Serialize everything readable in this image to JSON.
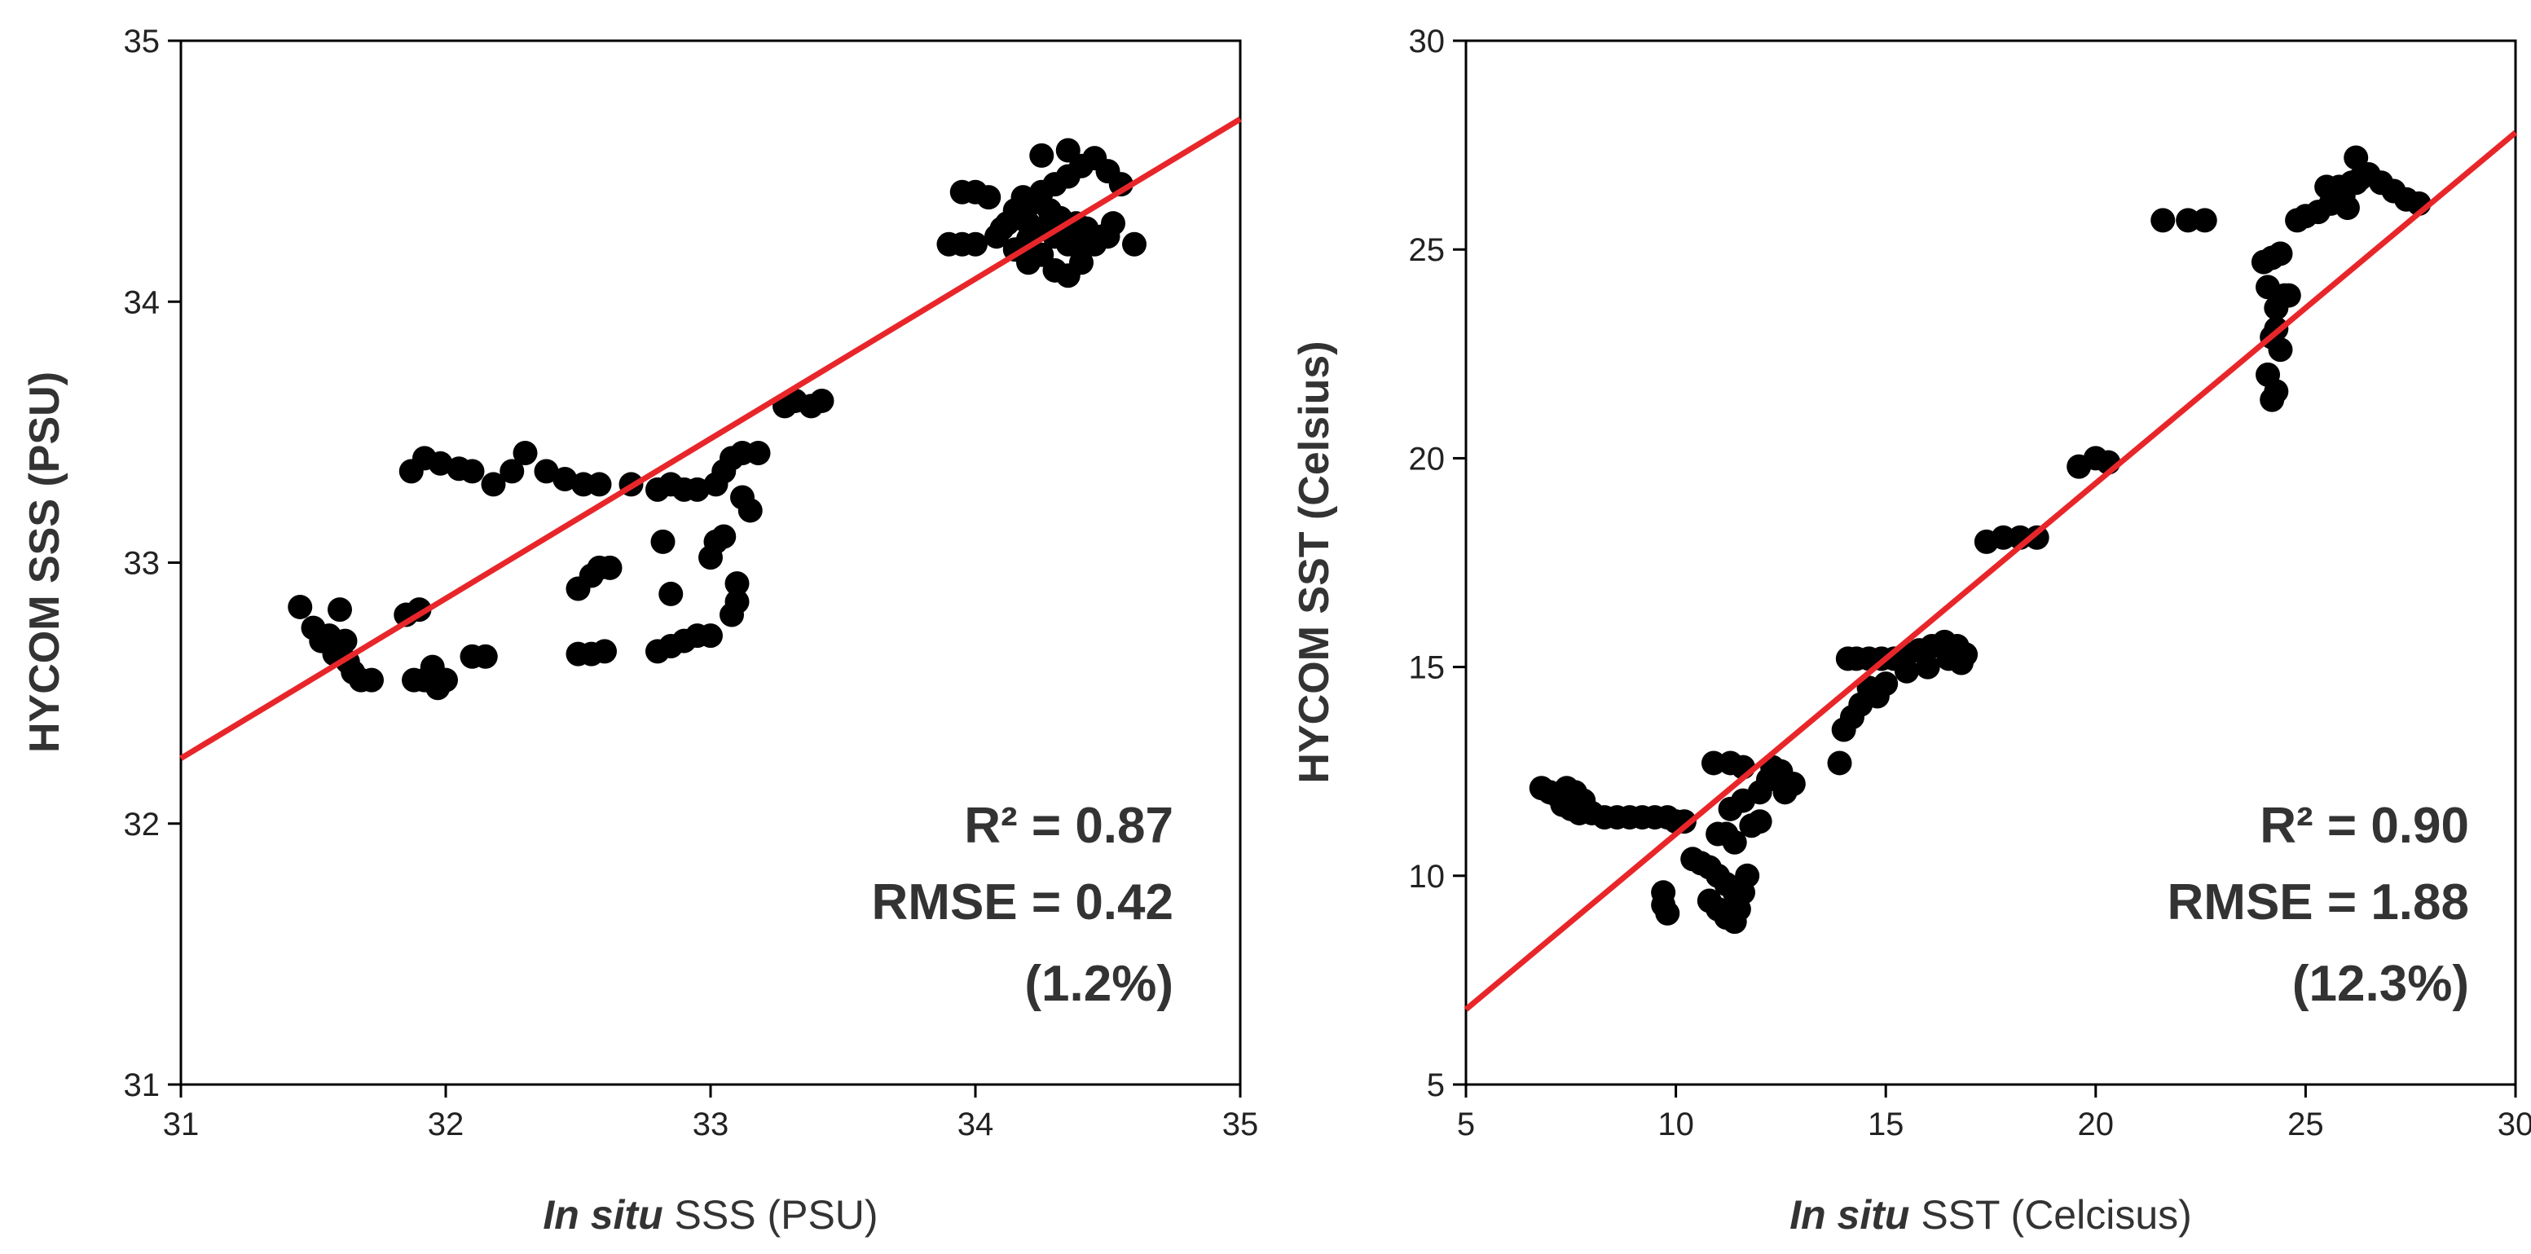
{
  "chart_data": [
    {
      "type": "scatter",
      "title": "",
      "xlabel_italic": "In situ",
      "xlabel_rest": " SSS (PSU)",
      "ylabel": "HYCOM SSS (PSU)",
      "xlim": [
        31,
        35
      ],
      "ylim": [
        31,
        35
      ],
      "xticks": [
        "31",
        "32",
        "33",
        "34",
        "35"
      ],
      "yticks": [
        "31",
        "32",
        "33",
        "34",
        "35"
      ],
      "grid": false,
      "fit_line": {
        "x": [
          31,
          35
        ],
        "y": [
          32.25,
          34.7
        ],
        "color": "#e8262a"
      },
      "stats": {
        "r2": "R² = 0.87",
        "rmse": "RMSE = 0.42",
        "pct": "(1.2%)"
      },
      "series": [
        {
          "name": "observations",
          "x": [
            31.45,
            31.5,
            31.53,
            31.56,
            31.58,
            31.6,
            31.62,
            31.63,
            31.65,
            31.68,
            31.72,
            31.85,
            31.9,
            31.95,
            31.88,
            31.92,
            31.97,
            32.0,
            32.1,
            32.15,
            31.87,
            31.92,
            31.98,
            32.05,
            32.1,
            32.18,
            32.25,
            32.3,
            32.38,
            32.45,
            32.52,
            32.58,
            32.7,
            32.8,
            32.85,
            32.9,
            32.95,
            32.5,
            32.55,
            32.58,
            32.62,
            32.5,
            32.55,
            32.6,
            32.8,
            32.85,
            32.9,
            32.95,
            33.0,
            32.85,
            32.82,
            33.0,
            33.02,
            33.05,
            33.08,
            33.1,
            33.02,
            33.05,
            33.08,
            33.12,
            33.18,
            33.1,
            33.12,
            33.15,
            33.28,
            33.32,
            33.38,
            33.42,
            33.9,
            33.95,
            34.0,
            34.05,
            33.95,
            34.0,
            34.08,
            34.12,
            34.15,
            34.2,
            34.25,
            34.3,
            34.35,
            34.4,
            34.45,
            34.5,
            34.55,
            34.6,
            34.15,
            34.2,
            34.25,
            34.3,
            34.35,
            34.4,
            34.48,
            34.52,
            34.1,
            34.15,
            34.2,
            34.25,
            34.3,
            34.35,
            34.4,
            34.45,
            34.18,
            34.22,
            34.28,
            34.32,
            34.38,
            34.42,
            34.2,
            34.3,
            34.36,
            34.25,
            34.35,
            34.5
          ],
          "y": [
            32.83,
            32.75,
            32.7,
            32.72,
            32.65,
            32.82,
            32.7,
            32.62,
            32.58,
            32.55,
            32.55,
            32.8,
            32.82,
            32.6,
            32.55,
            32.55,
            32.52,
            32.55,
            32.64,
            32.64,
            33.35,
            33.4,
            33.38,
            33.36,
            33.35,
            33.3,
            33.35,
            33.42,
            33.35,
            33.32,
            33.3,
            33.3,
            33.3,
            33.28,
            33.3,
            33.28,
            33.28,
            32.9,
            32.95,
            32.98,
            32.98,
            32.65,
            32.65,
            32.66,
            32.66,
            32.68,
            32.7,
            32.72,
            32.72,
            32.88,
            33.08,
            33.02,
            33.08,
            33.1,
            32.8,
            32.85,
            33.3,
            33.35,
            33.4,
            33.42,
            33.42,
            32.92,
            33.25,
            33.2,
            33.6,
            33.62,
            33.6,
            33.62,
            34.22,
            34.42,
            34.42,
            34.4,
            34.22,
            34.22,
            34.25,
            34.3,
            34.35,
            34.38,
            34.42,
            34.45,
            34.48,
            34.52,
            34.55,
            34.5,
            34.45,
            34.22,
            34.2,
            34.15,
            34.18,
            34.12,
            34.1,
            34.15,
            34.25,
            34.3,
            34.28,
            34.32,
            34.3,
            34.28,
            34.25,
            34.22,
            34.2,
            34.22,
            34.4,
            34.38,
            34.35,
            34.32,
            34.3,
            34.28,
            34.24,
            34.25,
            34.26,
            34.56,
            34.58,
            34.25
          ]
        }
      ]
    },
    {
      "type": "scatter",
      "title": "",
      "xlabel_italic": "In situ",
      "xlabel_rest": " SST (Celcisus)",
      "ylabel": "HYCOM SST (Celsius)",
      "xlim": [
        5,
        30
      ],
      "ylim": [
        5,
        30
      ],
      "xticks": [
        "5",
        "10",
        "15",
        "20",
        "25",
        "30"
      ],
      "yticks": [
        "5",
        "10",
        "15",
        "20",
        "25",
        "30"
      ],
      "grid": false,
      "fit_line": {
        "x": [
          5,
          30
        ],
        "y": [
          6.8,
          27.8
        ],
        "color": "#e8262a"
      },
      "stats": {
        "r2": "R² = 0.90",
        "rmse": "RMSE = 1.88",
        "pct": "(12.3%)"
      },
      "series": [
        {
          "name": "observations",
          "x": [
            6.8,
            7.0,
            7.2,
            7.4,
            7.6,
            7.8,
            7.3,
            7.5,
            7.7,
            8.0,
            8.3,
            8.6,
            8.9,
            9.2,
            9.5,
            9.8,
            10.0,
            10.2,
            9.7,
            9.7,
            9.8,
            10.4,
            10.6,
            10.8,
            11.0,
            11.2,
            11.4,
            10.8,
            11.0,
            11.2,
            11.4,
            11.5,
            11.6,
            11.7,
            11.4,
            11.2,
            11.0,
            10.9,
            11.3,
            11.6,
            11.8,
            12.0,
            11.3,
            11.6,
            12.0,
            12.2,
            12.5,
            12.8,
            12.3,
            12.6,
            13.9,
            14.0,
            14.2,
            14.4,
            14.6,
            14.8,
            14.1,
            14.3,
            14.6,
            14.9,
            15.2,
            15.5,
            15.8,
            16.1,
            16.4,
            16.7,
            16.9,
            15.0,
            15.5,
            16.0,
            16.5,
            16.8,
            17.4,
            17.8,
            18.2,
            18.6,
            19.6,
            20.0,
            20.3,
            21.6,
            22.2,
            22.6,
            24.0,
            24.2,
            24.4,
            24.1,
            24.3,
            24.5,
            24.6,
            24.3,
            24.2,
            24.4,
            24.1,
            24.3,
            24.2,
            24.8,
            25.0,
            25.3,
            25.6,
            25.9,
            26.2,
            26.5,
            26.8,
            27.1,
            27.4,
            27.7,
            25.5,
            25.8,
            26.1,
            26.3,
            25.9,
            26.2,
            26.0
          ],
          "y": [
            12.1,
            12.0,
            11.9,
            12.1,
            12.0,
            11.8,
            11.7,
            11.6,
            11.5,
            11.5,
            11.4,
            11.4,
            11.4,
            11.4,
            11.4,
            11.4,
            11.3,
            11.3,
            9.3,
            9.6,
            9.1,
            10.4,
            10.3,
            10.2,
            10.0,
            9.8,
            9.6,
            9.4,
            9.2,
            9.0,
            8.9,
            9.2,
            9.6,
            10.0,
            10.8,
            11.0,
            11.0,
            12.7,
            12.7,
            12.6,
            11.2,
            11.3,
            11.6,
            11.8,
            12.0,
            12.3,
            12.5,
            12.2,
            12.6,
            12.0,
            12.7,
            13.5,
            13.8,
            14.1,
            14.5,
            14.3,
            15.2,
            15.2,
            15.2,
            15.2,
            15.2,
            15.3,
            15.4,
            15.5,
            15.6,
            15.5,
            15.3,
            14.6,
            14.9,
            15.0,
            15.2,
            15.1,
            18.0,
            18.1,
            18.1,
            18.1,
            19.8,
            20.0,
            19.9,
            25.7,
            25.7,
            25.7,
            24.7,
            24.8,
            24.9,
            24.1,
            23.6,
            23.9,
            23.9,
            23.1,
            22.9,
            22.6,
            22.0,
            21.6,
            21.4,
            25.7,
            25.8,
            25.9,
            26.1,
            26.3,
            26.6,
            26.8,
            26.6,
            26.4,
            26.2,
            26.1,
            26.5,
            26.5,
            26.6,
            26.7,
            26.1,
            27.2,
            26.0
          ]
        }
      ]
    }
  ]
}
